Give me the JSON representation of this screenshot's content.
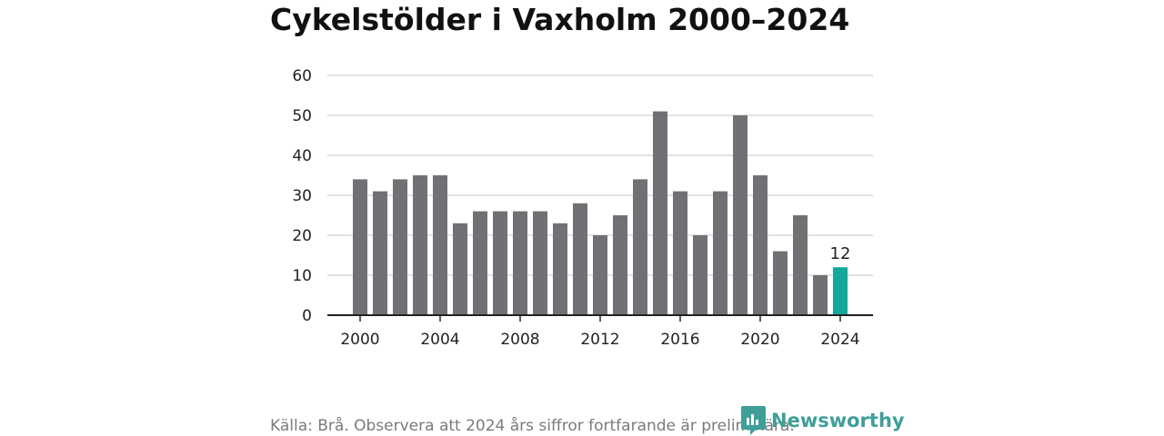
{
  "chart_data": {
    "type": "bar",
    "title": "Cykelstölder i Vaxholm 2000–2024",
    "xlabel": "",
    "ylabel": "",
    "categories": [
      "2000",
      "2001",
      "2002",
      "2003",
      "2004",
      "2005",
      "2006",
      "2007",
      "2008",
      "2009",
      "2010",
      "2011",
      "2012",
      "2013",
      "2014",
      "2015",
      "2016",
      "2017",
      "2018",
      "2019",
      "2020",
      "2021",
      "2022",
      "2023",
      "2024"
    ],
    "values": [
      34,
      31,
      34,
      35,
      35,
      23,
      26,
      26,
      26,
      26,
      23,
      28,
      20,
      25,
      34,
      51,
      31,
      20,
      31,
      50,
      35,
      16,
      25,
      10,
      12
    ],
    "ylim": [
      0,
      60
    ],
    "yticks": [
      0,
      10,
      20,
      30,
      40,
      50,
      60
    ],
    "xticks": [
      "2000",
      "2004",
      "2008",
      "2012",
      "2016",
      "2020",
      "2024"
    ],
    "highlight": {
      "category": "2024",
      "label": "12"
    },
    "grid": true,
    "colors": {
      "bar": "#717075",
      "highlight": "#14a79a",
      "grid": "#d9d9d9",
      "axis": "#222222"
    }
  },
  "source": "Källa: Brå. Observera att 2024 års siffror fortfarande är preliminära.",
  "brand": {
    "name": "Newsworthy",
    "icon": "newsworthy-logo-icon",
    "color": "#3f9e99"
  }
}
